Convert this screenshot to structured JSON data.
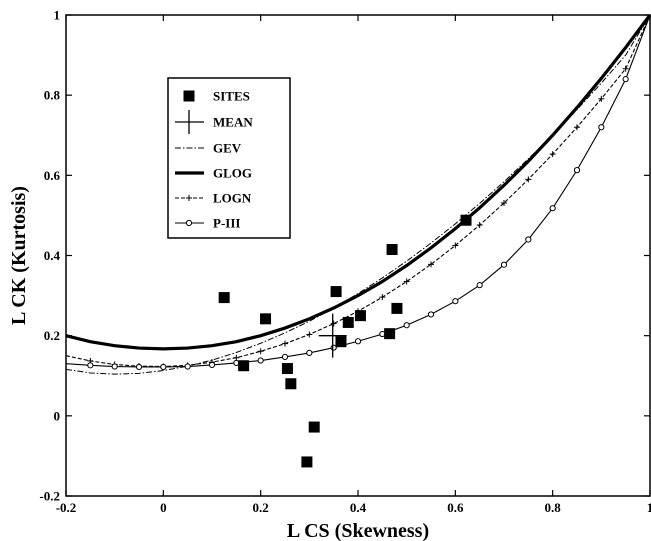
{
  "chart_data": {
    "type": "scatter",
    "title": "",
    "xlabel": "L CS (Skewness)",
    "ylabel": "L CK (Kurtosis)",
    "xlim": [
      -0.2,
      1
    ],
    "ylim": [
      -0.2,
      1
    ],
    "xticks": [
      -0.2,
      0,
      0.2,
      0.4,
      0.6,
      0.8,
      1
    ],
    "yticks": [
      -0.2,
      0,
      0.2,
      0.4,
      0.6,
      0.8,
      1
    ],
    "grid": false,
    "legend_position": "upper-left",
    "legend": [
      "SITES",
      "MEAN",
      "GEV",
      "GLOG",
      "LOGN",
      "P-III"
    ],
    "series": [
      {
        "name": "SITES",
        "style": "square-markers",
        "points": [
          [
            0.125,
            0.295
          ],
          [
            0.165,
            0.125
          ],
          [
            0.21,
            0.242
          ],
          [
            0.255,
            0.118
          ],
          [
            0.262,
            0.08
          ],
          [
            0.295,
            -0.115
          ],
          [
            0.31,
            -0.028
          ],
          [
            0.355,
            0.31
          ],
          [
            0.365,
            0.185
          ],
          [
            0.38,
            0.233
          ],
          [
            0.405,
            0.25
          ],
          [
            0.465,
            0.205
          ],
          [
            0.47,
            0.415
          ],
          [
            0.48,
            0.268
          ],
          [
            0.622,
            0.488
          ]
        ]
      },
      {
        "name": "MEAN",
        "style": "cross",
        "point": [
          0.348,
          0.2
        ]
      },
      {
        "name": "GEV",
        "style": "dash-dot",
        "x": [
          -0.2,
          -0.15,
          -0.1,
          -0.05,
          0,
          0.05,
          0.1,
          0.15,
          0.2,
          0.25,
          0.3,
          0.35,
          0.4,
          0.45,
          0.5,
          0.55,
          0.6,
          0.65,
          0.7,
          0.75,
          0.8,
          0.85,
          0.9,
          0.95,
          1
        ],
        "y": [
          0.116,
          0.107,
          0.104,
          0.106,
          0.113,
          0.124,
          0.139,
          0.158,
          0.181,
          0.207,
          0.236,
          0.269,
          0.305,
          0.344,
          0.386,
          0.431,
          0.479,
          0.53,
          0.584,
          0.641,
          0.701,
          0.764,
          0.83,
          0.9,
          1.0
        ]
      },
      {
        "name": "GLOG",
        "style": "thick-solid",
        "x": [
          -0.2,
          -0.15,
          -0.1,
          -0.05,
          0,
          0.05,
          0.1,
          0.15,
          0.2,
          0.25,
          0.3,
          0.35,
          0.4,
          0.45,
          0.5,
          0.55,
          0.6,
          0.65,
          0.7,
          0.75,
          0.8,
          0.85,
          0.9,
          0.95,
          1
        ],
        "y": [
          0.2,
          0.185,
          0.175,
          0.169,
          0.167,
          0.169,
          0.175,
          0.185,
          0.2,
          0.219,
          0.242,
          0.269,
          0.3,
          0.335,
          0.375,
          0.419,
          0.467,
          0.519,
          0.575,
          0.635,
          0.7,
          0.769,
          0.842,
          0.919,
          1.0
        ]
      },
      {
        "name": "LOGN",
        "style": "dashed-plus",
        "x": [
          -0.2,
          -0.15,
          -0.1,
          -0.05,
          0,
          0.05,
          0.1,
          0.15,
          0.2,
          0.25,
          0.3,
          0.35,
          0.4,
          0.45,
          0.5,
          0.55,
          0.6,
          0.65,
          0.7,
          0.75,
          0.8,
          0.85,
          0.9,
          0.95,
          1
        ],
        "y": [
          0.15,
          0.137,
          0.128,
          0.124,
          0.123,
          0.126,
          0.134,
          0.145,
          0.161,
          0.18,
          0.203,
          0.23,
          0.261,
          0.296,
          0.335,
          0.378,
          0.425,
          0.476,
          0.531,
          0.59,
          0.653,
          0.72,
          0.791,
          0.866,
          1.0
        ]
      },
      {
        "name": "P-III",
        "style": "solid-circle",
        "x": [
          -0.2,
          -0.15,
          -0.1,
          -0.05,
          0,
          0.05,
          0.1,
          0.15,
          0.2,
          0.25,
          0.3,
          0.35,
          0.4,
          0.45,
          0.5,
          0.55,
          0.6,
          0.65,
          0.7,
          0.75,
          0.8,
          0.85,
          0.9,
          0.95,
          1
        ],
        "y": [
          0.13,
          0.126,
          0.123,
          0.122,
          0.122,
          0.123,
          0.127,
          0.132,
          0.138,
          0.147,
          0.157,
          0.17,
          0.186,
          0.204,
          0.226,
          0.253,
          0.286,
          0.326,
          0.377,
          0.44,
          0.518,
          0.613,
          0.72,
          0.84,
          1.0
        ]
      }
    ]
  }
}
